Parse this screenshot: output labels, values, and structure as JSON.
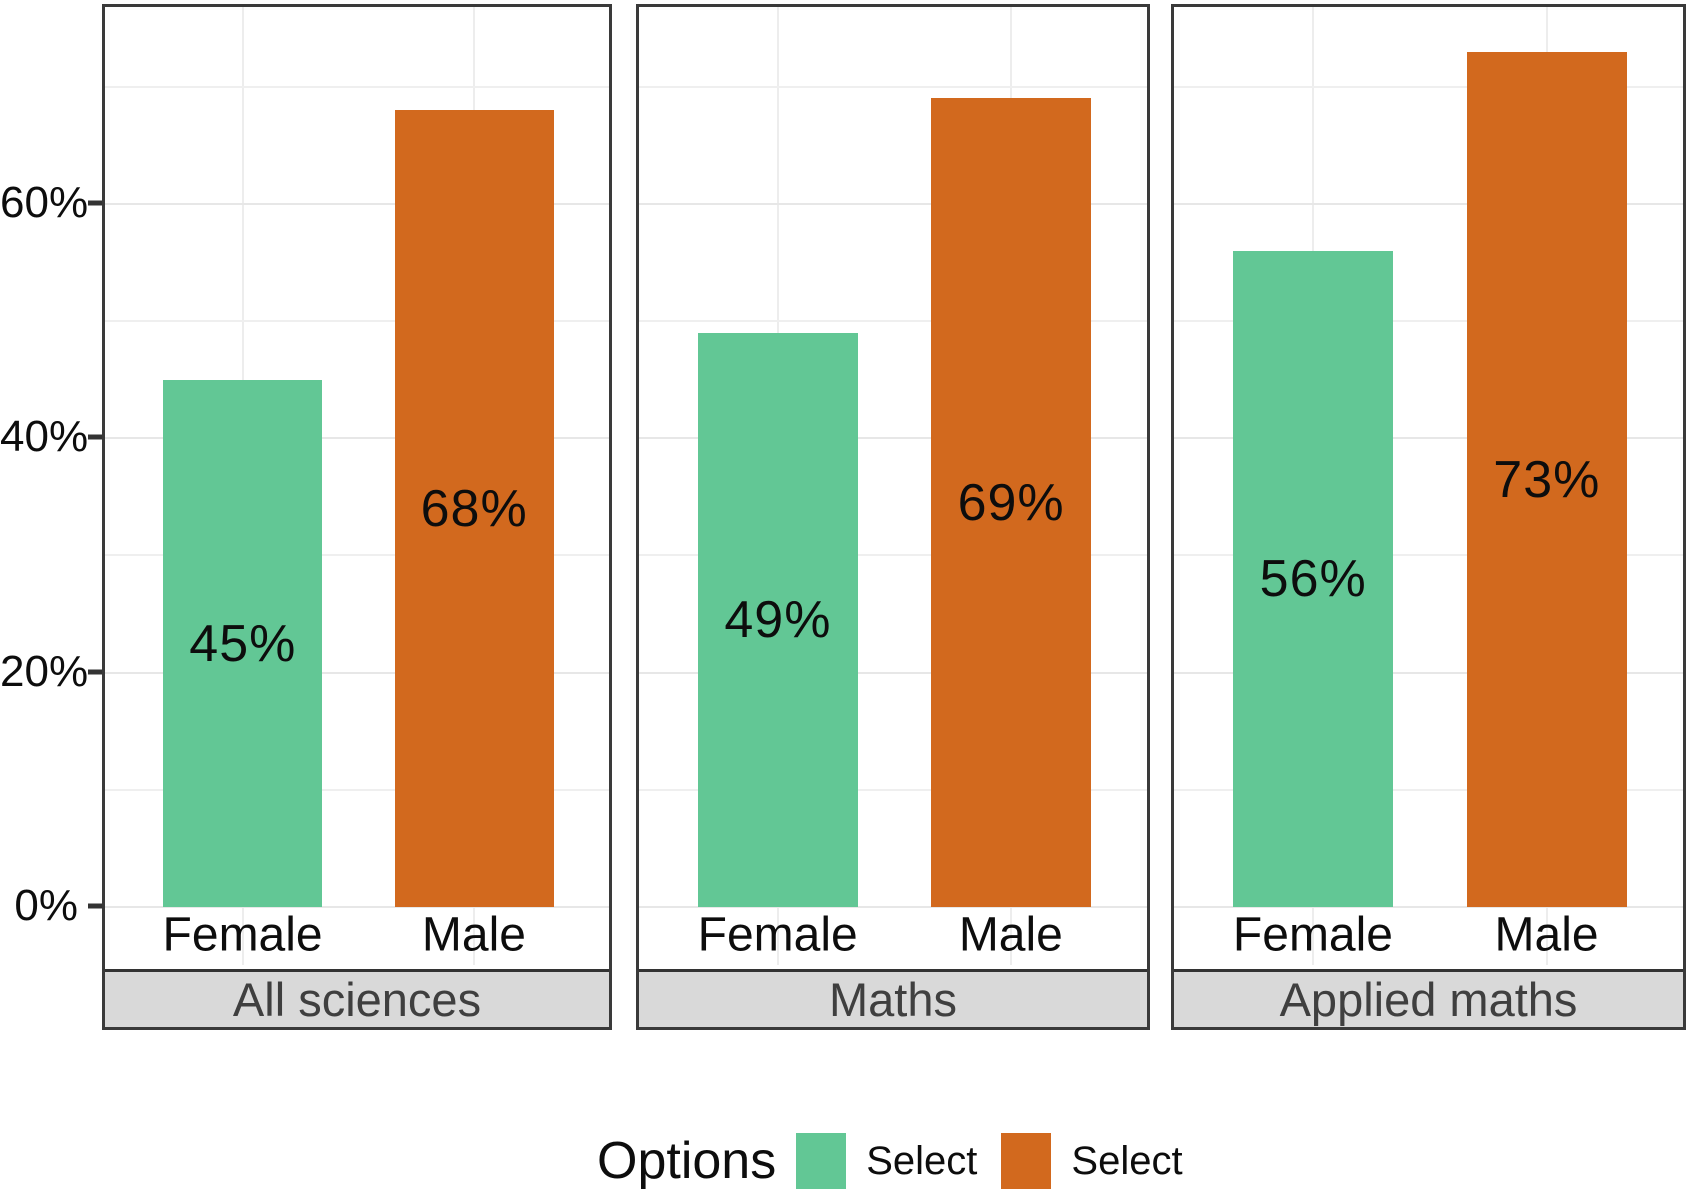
{
  "chart_data": {
    "type": "bar",
    "title": "",
    "xlabel": "",
    "ylabel": "",
    "categories": [
      "Female",
      "Male"
    ],
    "facets": [
      {
        "label": "All sciences",
        "values": [
          45,
          68
        ],
        "value_labels": [
          "45%",
          "68%"
        ]
      },
      {
        "label": "Maths",
        "values": [
          49,
          69
        ],
        "value_labels": [
          "49%",
          "69%"
        ]
      },
      {
        "label": "Applied maths",
        "values": [
          56,
          73
        ],
        "value_labels": [
          "56%",
          "73%"
        ]
      }
    ],
    "series": [
      {
        "name": "Select",
        "color": "#62c795",
        "values_by_facet": [
          45,
          49,
          56
        ]
      },
      {
        "name": "Select",
        "color": "#d2691e",
        "values_by_facet": [
          68,
          69,
          73
        ]
      }
    ],
    "y_ticks": {
      "t0": "0%",
      "t20": "20%",
      "t40": "40%",
      "t60": "60%"
    },
    "ylim": [
      0,
      76.8
    ],
    "grid": "on",
    "legend": {
      "position": "bottom",
      "title": "Options",
      "entries": [
        {
          "label": "Select",
          "color": "#62c795"
        },
        {
          "label": "Select",
          "color": "#d2691e"
        }
      ]
    },
    "colors": {
      "female_bar": "#62c795",
      "male_bar": "#d2691e",
      "panel_border": "#3a3a3a",
      "strip_background": "#d9d9d9",
      "strip_text": "#3f3f3f",
      "gridline": "#e7e7e7"
    }
  }
}
